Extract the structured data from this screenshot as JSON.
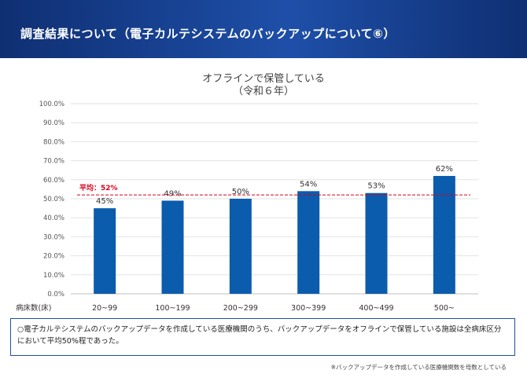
{
  "header": {
    "title": "調査結果について（電子カルテシステムのバックアップについて⑥）"
  },
  "chart_data": {
    "type": "bar",
    "title": "オフラインで保管している",
    "subtitle": "（令和６年）",
    "xlabel": "病床数(床)",
    "ylabel": "",
    "categories": [
      "20~99",
      "100~199",
      "200~299",
      "300~399",
      "400~499",
      "500~"
    ],
    "values": [
      45,
      49,
      50,
      54,
      53,
      62
    ],
    "value_labels": [
      "45%",
      "49%",
      "50%",
      "54%",
      "53%",
      "62%"
    ],
    "ylim": [
      0,
      100
    ],
    "yticks": [
      "0.0%",
      "10.0%",
      "20.0%",
      "30.0%",
      "40.0%",
      "50.0%",
      "60.0%",
      "70.0%",
      "80.0%",
      "90.0%",
      "100.0%"
    ],
    "grid": true,
    "bar_color": "#0b5cad",
    "average": {
      "value": 52,
      "label": "平均：52%",
      "color": "#d9001b"
    }
  },
  "note": {
    "text": "○電子カルテシステムのバックアップデータを作成している医療機関のうち、バックアップデータをオフラインで保管している施設は全病床区分において平均50%程であった。"
  },
  "footnote": "※バックアップデータを作成している医療機関数を母数としている"
}
